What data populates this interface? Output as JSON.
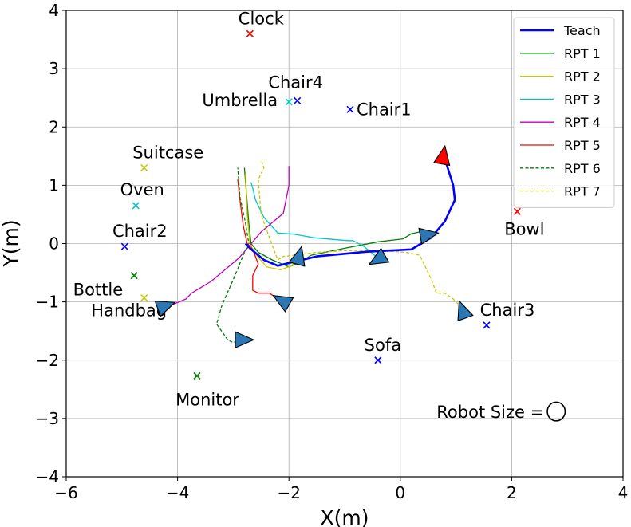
{
  "chart_data": {
    "type": "line",
    "title": "",
    "xlabel": "X(m)",
    "ylabel": "Y(m)",
    "xlim": [
      -6,
      4
    ],
    "ylim": [
      -4,
      4
    ],
    "xticks": [
      -6,
      -4,
      -2,
      0,
      2,
      4
    ],
    "yticks": [
      -4,
      -3,
      -2,
      -1,
      0,
      1,
      2,
      3,
      4
    ],
    "xtick_labels": [
      "−6",
      "−4",
      "−2",
      "0",
      "2",
      "4"
    ],
    "ytick_labels": [
      "−4",
      "−3",
      "−2",
      "−1",
      "0",
      "1",
      "2",
      "3",
      "4"
    ],
    "grid": true,
    "legend_position": "top-right",
    "series": [
      {
        "name": "Teach",
        "color": "#0000ff",
        "style": "solid",
        "width": 2.6,
        "x": [
          0.77,
          0.85,
          0.95,
          0.98,
          0.8,
          0.55,
          0.2,
          -0.6,
          -1.5,
          -1.9,
          -2.2,
          -2.45,
          -2.7,
          -2.78
        ],
        "y": [
          1.55,
          1.3,
          1.0,
          0.75,
          0.38,
          0.1,
          -0.1,
          -0.14,
          -0.22,
          -0.31,
          -0.38,
          -0.28,
          -0.08,
          0.0
        ]
      },
      {
        "name": "RPT 1",
        "color": "#008000",
        "style": "solid",
        "width": 1.3,
        "x": [
          0.55,
          0.35,
          0.2,
          0.05,
          -0.4,
          -1.0,
          -1.6,
          -1.8,
          -2.0,
          -2.3,
          -2.55,
          -2.68,
          -2.72,
          -2.8
        ],
        "y": [
          0.15,
          0.2,
          0.17,
          0.08,
          0.03,
          -0.08,
          -0.2,
          -0.32,
          -0.4,
          -0.28,
          -0.15,
          0.0,
          0.35,
          1.3
        ]
      },
      {
        "name": "RPT 2",
        "color": "#c8c800",
        "style": "solid",
        "width": 1.3,
        "x": [
          -1.85,
          -1.95,
          -2.15,
          -2.4,
          -2.6,
          -2.7,
          -2.75,
          -2.78
        ],
        "y": [
          -0.25,
          -0.38,
          -0.45,
          -0.4,
          -0.18,
          0.0,
          0.5,
          1.2
        ]
      },
      {
        "name": "RPT 3",
        "color": "#00c8c8",
        "style": "solid",
        "width": 1.3,
        "x": [
          -0.4,
          -0.65,
          -0.85,
          -0.95,
          -1.55,
          -1.9,
          -2.2,
          -2.45,
          -2.6,
          -2.65,
          -2.68
        ],
        "y": [
          -0.25,
          -0.05,
          0.05,
          0.05,
          0.1,
          0.16,
          0.18,
          0.45,
          0.75,
          0.95,
          1.05
        ]
      },
      {
        "name": "RPT 4",
        "color": "#c000c0",
        "style": "solid",
        "width": 1.3,
        "x": [
          -4.3,
          -4.1,
          -3.85,
          -3.75,
          -3.4,
          -2.9,
          -2.5,
          -2.25,
          -2.1,
          -2.0,
          -2.0
        ],
        "y": [
          -1.08,
          -1.05,
          -0.95,
          -0.85,
          -0.65,
          -0.25,
          0.2,
          0.4,
          0.52,
          1.0,
          1.33
        ]
      },
      {
        "name": "RPT 5",
        "color": "#ff0000",
        "style": "solid",
        "width": 1.3,
        "x": [
          -2.2,
          -2.35,
          -2.55,
          -2.65,
          -2.65,
          -2.55,
          -2.65,
          -2.75,
          -2.82,
          -2.88,
          -2.92
        ],
        "y": [
          -0.95,
          -0.85,
          -0.85,
          -0.8,
          -0.55,
          -0.35,
          -0.1,
          0.0,
          0.3,
          0.75,
          1.1
        ]
      },
      {
        "name": "RPT 6",
        "color": "#008000",
        "style": "dashed",
        "width": 1.3,
        "x": [
          -2.85,
          -3.0,
          -3.1,
          -3.3,
          -3.2,
          -3.0,
          -2.8,
          -2.72,
          -2.78,
          -2.88,
          -2.92
        ],
        "y": [
          -1.63,
          -1.7,
          -1.65,
          -1.38,
          -1.05,
          -0.62,
          -0.15,
          0.0,
          0.35,
          0.8,
          1.3
        ]
      },
      {
        "name": "RPT 7",
        "color": "#c8c800",
        "style": "dashed",
        "width": 1.3,
        "x": [
          1.1,
          0.95,
          0.8,
          0.65,
          0.55,
          0.35,
          0.1,
          -0.4,
          -1.0,
          -1.5,
          -1.9,
          -2.1,
          -2.2,
          -2.35,
          -2.5,
          -2.55,
          -2.45,
          -2.5
        ],
        "y": [
          -1.1,
          -0.95,
          -0.85,
          -0.85,
          -0.6,
          -0.2,
          -0.15,
          -0.12,
          -0.12,
          -0.15,
          -0.2,
          -0.22,
          -0.28,
          0.1,
          0.5,
          1.1,
          1.3,
          1.45
        ]
      }
    ],
    "objects": [
      {
        "label": "Clock",
        "x": -2.7,
        "y": 3.6,
        "color": "#ff0000"
      },
      {
        "label": "Chair4",
        "x": -1.85,
        "y": 2.45,
        "color": "#0000ff"
      },
      {
        "label": "Umbrella",
        "x": -2.0,
        "y": 2.43,
        "color": "#00c8c8"
      },
      {
        "label": "Chair1",
        "x": -0.9,
        "y": 2.3,
        "color": "#0000ff"
      },
      {
        "label": "Suitcase",
        "x": -4.6,
        "y": 1.3,
        "color": "#c8c800"
      },
      {
        "label": "Oven",
        "x": -4.75,
        "y": 0.65,
        "color": "#00c8c8"
      },
      {
        "label": "Chair2",
        "x": -4.95,
        "y": -0.05,
        "color": "#0000ff"
      },
      {
        "label": "Bottle",
        "x": -4.78,
        "y": -0.55,
        "color": "#008000"
      },
      {
        "label": "Handbag",
        "x": -4.6,
        "y": -0.93,
        "color": "#c8c800"
      },
      {
        "label": "Monitor",
        "x": -3.65,
        "y": -2.27,
        "color": "#008000"
      },
      {
        "label": "Sofa",
        "x": -0.4,
        "y": -2.0,
        "color": "#0000ff"
      },
      {
        "label": "Chair3",
        "x": 1.55,
        "y": -1.4,
        "color": "#0000ff"
      },
      {
        "label": "Bowl",
        "x": 2.1,
        "y": 0.55,
        "color": "#ff0000"
      }
    ],
    "start_marker": {
      "x": 0.77,
      "y": 1.5,
      "color": "#ff0000",
      "heading_deg": 80
    },
    "end_markers": [
      {
        "x": 0.5,
        "y": 0.15,
        "heading_deg": 10
      },
      {
        "x": -1.82,
        "y": -0.22,
        "heading_deg": 75
      },
      {
        "x": -0.4,
        "y": -0.27,
        "heading_deg": 210
      },
      {
        "x": -2.12,
        "y": -0.98,
        "heading_deg": 150
      },
      {
        "x": -4.22,
        "y": -1.07,
        "heading_deg": 20
      },
      {
        "x": -2.82,
        "y": -1.65,
        "heading_deg": 0
      },
      {
        "x": 1.12,
        "y": -1.15,
        "heading_deg": 110
      }
    ],
    "marker_color": "#2a77b4",
    "annotation": {
      "text": "Robot Size =",
      "circle_x": 2.8,
      "circle_y": -2.88,
      "circle_radius_m": 0.16
    }
  }
}
